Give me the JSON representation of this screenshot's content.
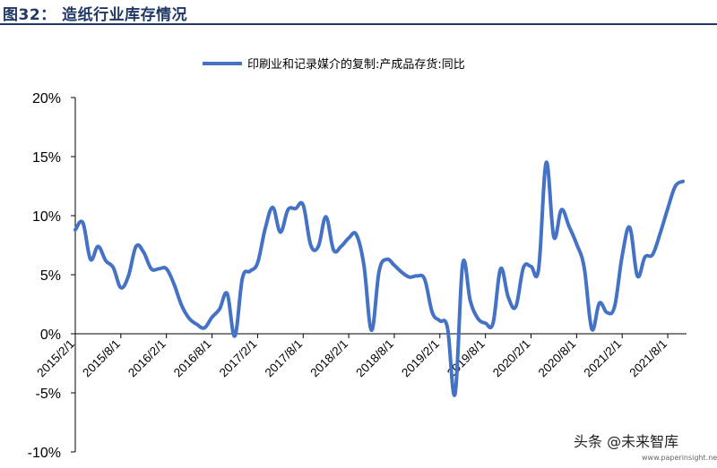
{
  "header": {
    "title": "图32：  造纸行业库存情况"
  },
  "watermark": {
    "label": "头条 @未来智库",
    "url": "www.paperinsight.net"
  },
  "chart_data": {
    "type": "line",
    "title": "",
    "xlabel": "",
    "ylabel": "",
    "ylim": [
      -10,
      20
    ],
    "yticks": [
      -10,
      -5,
      0,
      5,
      10,
      15,
      20
    ],
    "ytick_labels": [
      "-10%",
      "-5%",
      "0%",
      "5%",
      "10%",
      "15%",
      "20%"
    ],
    "xtick_labels": [
      "2015/2/1",
      "2015/8/1",
      "2016/2/1",
      "2016/8/1",
      "2017/2/1",
      "2017/8/1",
      "2018/2/1",
      "2018/8/1",
      "2019/2/1",
      "2019/8/1",
      "2020/2/1",
      "2020/8/1",
      "2021/2/1",
      "2021/8/1"
    ],
    "legend_position": "top-center",
    "grid": false,
    "color": "#4472c4",
    "series": [
      {
        "name": "印刷业和记录媒介的复制:产成品存货:同比",
        "x": [
          "2015/2",
          "2015/3",
          "2015/4",
          "2015/5",
          "2015/6",
          "2015/7",
          "2015/8",
          "2015/9",
          "2015/10",
          "2015/11",
          "2015/12",
          "2016/1",
          "2016/2",
          "2016/3",
          "2016/4",
          "2016/5",
          "2016/6",
          "2016/7",
          "2016/8",
          "2016/9",
          "2016/10",
          "2016/11",
          "2016/12",
          "2017/1",
          "2017/2",
          "2017/3",
          "2017/4",
          "2017/5",
          "2017/6",
          "2017/7",
          "2017/8",
          "2017/9",
          "2017/10",
          "2017/11",
          "2017/12",
          "2018/1",
          "2018/2",
          "2018/3",
          "2018/4",
          "2018/5",
          "2018/6",
          "2018/7",
          "2018/8",
          "2018/9",
          "2018/10",
          "2018/11",
          "2018/12",
          "2019/1",
          "2019/2",
          "2019/3",
          "2019/4",
          "2019/5",
          "2019/6",
          "2019/7",
          "2019/8",
          "2019/9",
          "2019/10",
          "2019/11",
          "2019/12",
          "2020/1",
          "2020/2",
          "2020/3",
          "2020/4",
          "2020/5",
          "2020/6",
          "2020/7",
          "2020/8",
          "2020/9",
          "2020/10",
          "2020/11",
          "2020/12",
          "2021/1",
          "2021/2",
          "2021/3",
          "2021/4",
          "2021/5",
          "2021/6",
          "2021/7",
          "2021/8",
          "2021/9",
          "2021/10"
        ],
        "values": [
          8.8,
          9.4,
          6.3,
          7.4,
          6.2,
          5.6,
          3.9,
          4.9,
          7.4,
          6.9,
          5.5,
          5.5,
          5.5,
          4.2,
          2.4,
          1.3,
          0.8,
          0.5,
          1.4,
          2.1,
          3.4,
          -0.2,
          4.7,
          5.3,
          6.0,
          8.9,
          10.7,
          8.6,
          10.5,
          10.6,
          10.9,
          7.5,
          7.4,
          9.9,
          7.1,
          7.4,
          8.1,
          8.4,
          5.8,
          0.3,
          5.3,
          6.3,
          5.8,
          5.2,
          4.8,
          4.9,
          4.6,
          1.8,
          1.1,
          0.5,
          -5.1,
          5.9,
          2.8,
          1.3,
          0.9,
          0.9,
          5.5,
          3.1,
          2.3,
          5.6,
          5.7,
          5.5,
          14.5,
          8.2,
          10.5,
          9.1,
          7.6,
          5.6,
          0.4,
          2.6,
          1.8,
          2.3,
          6.6,
          9.0,
          4.9,
          6.5,
          6.7,
          8.5,
          10.6,
          12.5,
          12.9
        ]
      }
    ]
  }
}
